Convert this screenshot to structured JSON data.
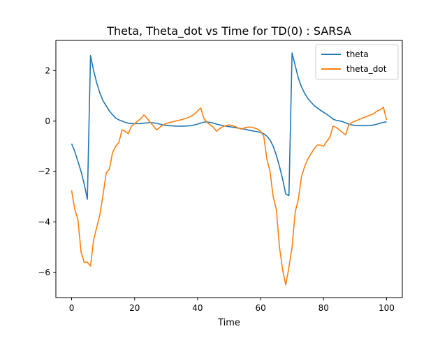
{
  "chart_data": {
    "type": "line",
    "title": "Theta, Theta_dot vs Time for TD(0) : SARSA",
    "xlabel": "Time",
    "ylabel": "",
    "xlim": [
      -5,
      105
    ],
    "ylim": [
      -7,
      3.2
    ],
    "x_ticks": [
      0,
      20,
      40,
      60,
      80,
      100
    ],
    "y_ticks": [
      -6,
      -4,
      -2,
      0,
      2
    ],
    "x_tick_labels": [
      "0",
      "20",
      "40",
      "60",
      "80",
      "100"
    ],
    "y_tick_labels": [
      "−6",
      "−4",
      "−2",
      "0",
      "2"
    ],
    "grid": false,
    "legend_position": "upper right",
    "series": [
      {
        "name": "theta",
        "color": "#1f77b4",
        "x": [
          0,
          1,
          2,
          3,
          4,
          5,
          6,
          7,
          8,
          9,
          10,
          11,
          12,
          13,
          14,
          15,
          16,
          17,
          18,
          19,
          20,
          21,
          22,
          23,
          24,
          25,
          26,
          27,
          28,
          29,
          30,
          31,
          32,
          33,
          34,
          35,
          36,
          37,
          38,
          39,
          40,
          41,
          42,
          43,
          44,
          45,
          46,
          47,
          48,
          49,
          50,
          51,
          52,
          53,
          54,
          55,
          56,
          57,
          58,
          59,
          60,
          61,
          62,
          63,
          64,
          65,
          66,
          67,
          68,
          69,
          70,
          71,
          72,
          73,
          74,
          75,
          76,
          77,
          78,
          79,
          80,
          81,
          82,
          83,
          84,
          85,
          86,
          87,
          88,
          89,
          90,
          91,
          92,
          93,
          94,
          95,
          96,
          97,
          98,
          99,
          100
        ],
        "y": [
          -0.9,
          -1.2,
          -1.6,
          -2.0,
          -2.5,
          -3.1,
          2.6,
          2.0,
          1.5,
          1.1,
          0.8,
          0.6,
          0.4,
          0.25,
          0.12,
          0.05,
          0.0,
          -0.05,
          -0.08,
          -0.1,
          -0.1,
          -0.1,
          -0.1,
          -0.08,
          -0.07,
          -0.06,
          -0.07,
          -0.09,
          -0.12,
          -0.15,
          -0.17,
          -0.18,
          -0.19,
          -0.2,
          -0.2,
          -0.2,
          -0.2,
          -0.19,
          -0.18,
          -0.15,
          -0.12,
          -0.08,
          -0.04,
          -0.04,
          -0.05,
          -0.08,
          -0.12,
          -0.15,
          -0.18,
          -0.2,
          -0.22,
          -0.24,
          -0.26,
          -0.28,
          -0.3,
          -0.32,
          -0.35,
          -0.38,
          -0.4,
          -0.42,
          -0.45,
          -0.5,
          -0.6,
          -0.75,
          -1.0,
          -1.35,
          -1.8,
          -2.3,
          -2.9,
          -2.95,
          2.7,
          2.2,
          1.7,
          1.35,
          1.1,
          0.9,
          0.75,
          0.62,
          0.52,
          0.43,
          0.35,
          0.27,
          0.18,
          0.08,
          0.03,
          0.01,
          -0.02,
          -0.07,
          -0.12,
          -0.15,
          -0.17,
          -0.18,
          -0.18,
          -0.18,
          -0.18,
          -0.17,
          -0.15,
          -0.12,
          -0.08,
          -0.05,
          -0.03
        ]
      },
      {
        "name": "theta_dot",
        "color": "#ff7f0e",
        "x": [
          0,
          1,
          2,
          3,
          4,
          5,
          6,
          7,
          8,
          9,
          10,
          11,
          12,
          13,
          14,
          15,
          16,
          17,
          18,
          19,
          20,
          21,
          22,
          23,
          24,
          25,
          26,
          27,
          28,
          29,
          30,
          31,
          32,
          33,
          34,
          35,
          36,
          37,
          38,
          39,
          40,
          41,
          42,
          43,
          44,
          45,
          46,
          47,
          48,
          49,
          50,
          51,
          52,
          53,
          54,
          55,
          56,
          57,
          58,
          59,
          60,
          61,
          62,
          63,
          64,
          65,
          66,
          67,
          68,
          69,
          70,
          71,
          72,
          73,
          74,
          75,
          76,
          77,
          78,
          79,
          80,
          81,
          82,
          83,
          84,
          85,
          86,
          87,
          88,
          89,
          90,
          91,
          92,
          93,
          94,
          95,
          96,
          97,
          98,
          99,
          100
        ],
        "y": [
          -2.75,
          -3.5,
          -3.9,
          -5.2,
          -5.6,
          -5.6,
          -5.75,
          -4.7,
          -4.2,
          -3.7,
          -2.9,
          -2.05,
          -1.9,
          -1.25,
          -1.0,
          -0.85,
          -0.35,
          -0.4,
          -0.5,
          -0.2,
          -0.1,
          0.0,
          0.1,
          0.25,
          0.1,
          -0.05,
          -0.2,
          -0.35,
          -0.25,
          -0.15,
          -0.1,
          -0.06,
          -0.03,
          0.0,
          0.03,
          0.06,
          0.1,
          0.14,
          0.2,
          0.28,
          0.4,
          0.52,
          0.1,
          -0.05,
          -0.15,
          -0.25,
          -0.4,
          -0.3,
          -0.22,
          -0.18,
          -0.15,
          -0.18,
          -0.22,
          -0.28,
          -0.32,
          -0.26,
          -0.24,
          -0.24,
          -0.27,
          -0.32,
          -0.4,
          -0.6,
          -1.5,
          -2.0,
          -3.0,
          -3.5,
          -5.0,
          -5.9,
          -6.5,
          -5.8,
          -5.0,
          -3.6,
          -3.1,
          -2.2,
          -1.8,
          -1.5,
          -1.3,
          -1.1,
          -0.95,
          -0.95,
          -1.0,
          -0.8,
          -0.65,
          -0.2,
          -0.25,
          -0.35,
          -0.45,
          -0.55,
          -0.15,
          -0.05,
          0.0,
          0.05,
          0.1,
          0.15,
          0.2,
          0.25,
          0.3,
          0.4,
          0.45,
          0.55,
          0.05
        ]
      }
    ]
  }
}
